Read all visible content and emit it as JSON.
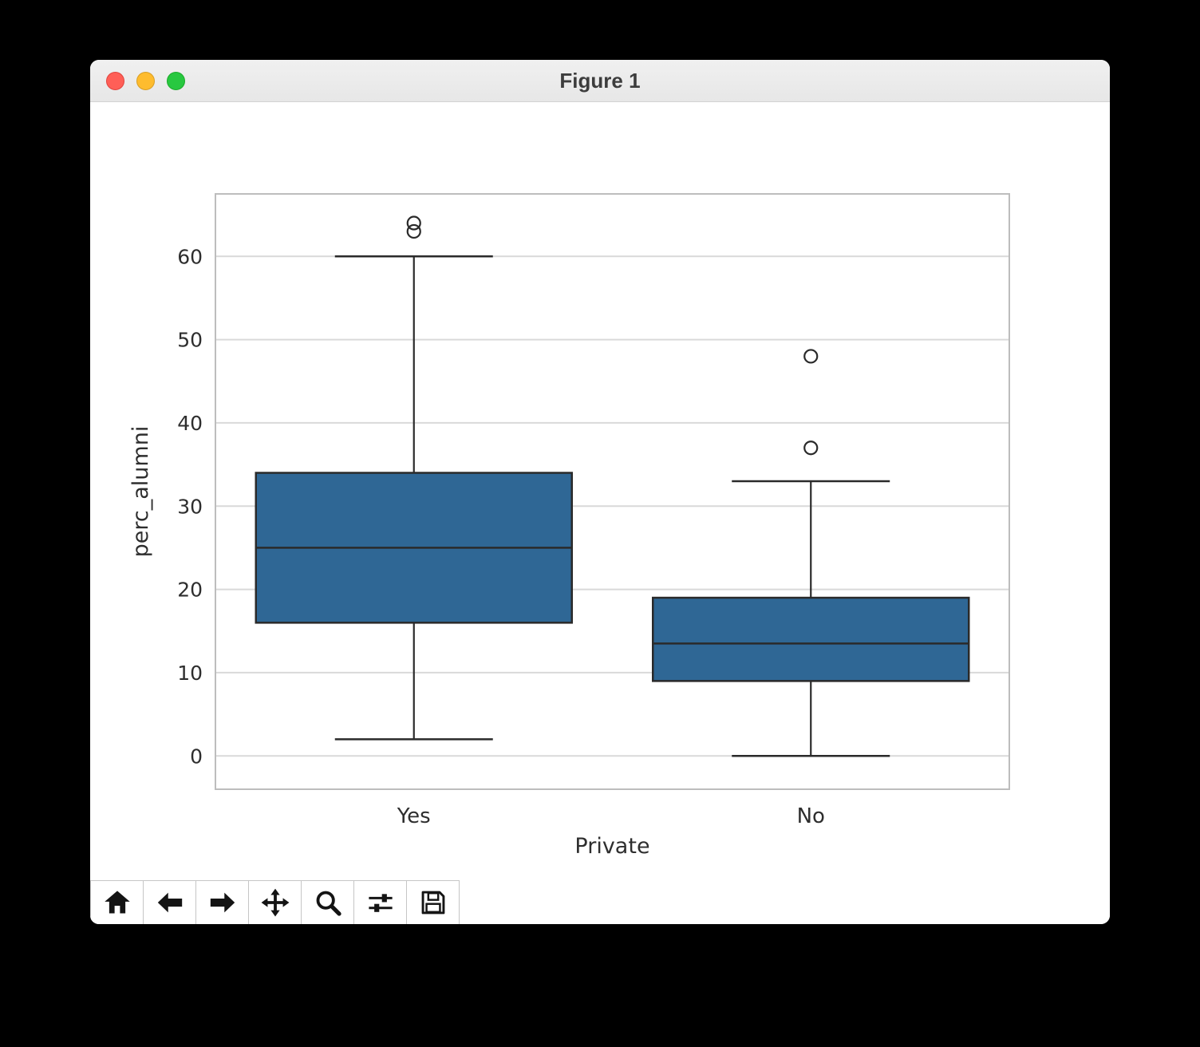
{
  "window": {
    "title": "Figure 1",
    "traffic_lights": {
      "close_color": "#ff5f57",
      "minimize_color": "#febc2e",
      "zoom_color": "#28c840"
    }
  },
  "toolbar": {
    "icons": [
      "home-icon",
      "back-arrow-icon",
      "forward-arrow-icon",
      "pan-move-icon",
      "zoom-magnifier-icon",
      "configure-subplots-sliders-icon",
      "save-floppy-icon"
    ]
  },
  "chart_data": {
    "type": "box",
    "title": "",
    "xlabel": "Private",
    "ylabel": "perc_alumni",
    "categories": [
      "Yes",
      "No"
    ],
    "ylim": [
      -4,
      67.5
    ],
    "yticks": [
      0,
      10,
      20,
      30,
      40,
      50,
      60
    ],
    "grid": true,
    "legend": "none",
    "box_fill_color": "#2f6795",
    "box_edge_color": "#2a2a2a",
    "grid_color": "#d9d9d9",
    "spine_color": "#bdbdbd",
    "boxes": [
      {
        "category": "Yes",
        "q1": 16,
        "median": 25,
        "q3": 34,
        "whisker_low": 2,
        "whisker_high": 60,
        "outliers": [
          63,
          64
        ]
      },
      {
        "category": "No",
        "q1": 9,
        "median": 13.5,
        "q3": 19,
        "whisker_low": 0,
        "whisker_high": 33,
        "outliers": [
          37,
          48
        ]
      }
    ]
  }
}
